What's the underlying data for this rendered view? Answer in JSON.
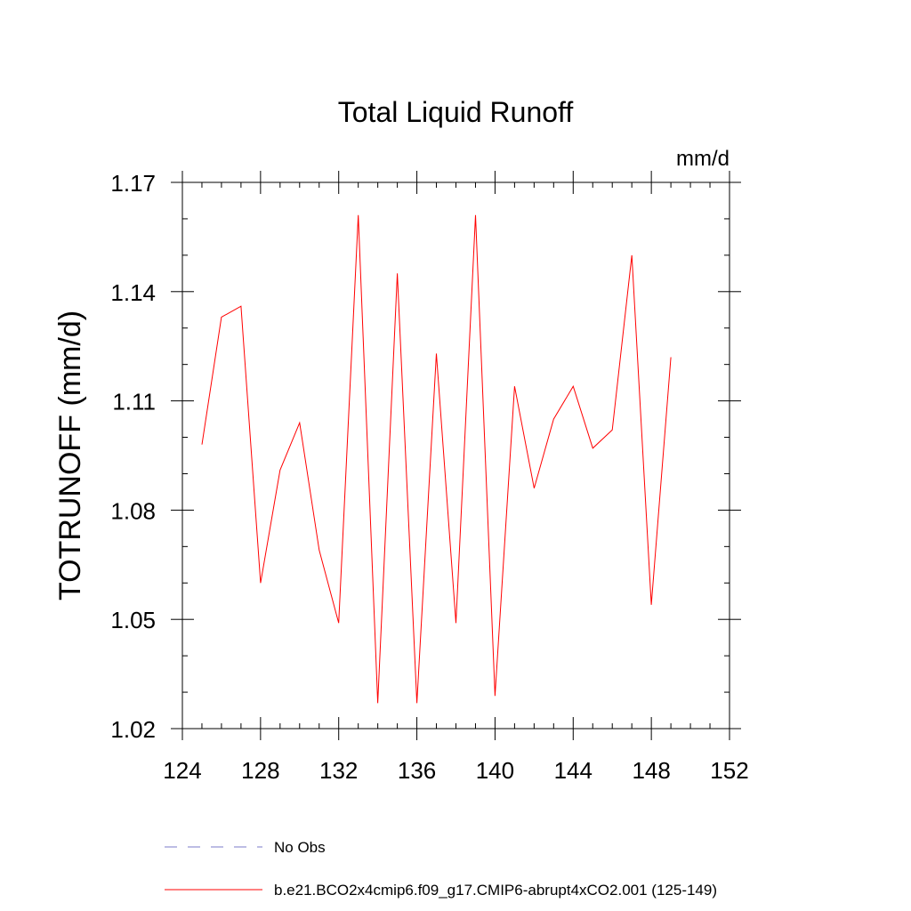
{
  "chart_data": {
    "type": "line",
    "title": "Total Liquid Runoff",
    "units": "mm/d",
    "ylabel": "TOTRUNOFF  (mm/d)",
    "xlabel": "",
    "xlim": [
      124,
      152
    ],
    "ylim": [
      1.02,
      1.17
    ],
    "x_ticks": [
      "124",
      "128",
      "132",
      "136",
      "140",
      "144",
      "148",
      "152"
    ],
    "y_ticks": [
      "1.02",
      "1.05",
      "1.08",
      "1.11",
      "1.14",
      "1.17"
    ],
    "x_tick_values": [
      124,
      128,
      132,
      136,
      140,
      144,
      148,
      152
    ],
    "y_tick_values": [
      1.02,
      1.05,
      1.08,
      1.11,
      1.14,
      1.17
    ],
    "grid": false,
    "legend_position": "bottom",
    "series": [
      {
        "name": "b.e21.BCO2x4cmip6.f09_g17.CMIP6-abrupt4xCO2.001 (125-149)",
        "color": "#ff0000",
        "x": [
          125,
          126,
          127,
          128,
          129,
          130,
          131,
          132,
          133,
          134,
          135,
          136,
          137,
          138,
          139,
          140,
          141,
          142,
          143,
          144,
          145,
          146,
          147,
          148,
          149
        ],
        "values": [
          1.098,
          1.133,
          1.136,
          1.06,
          1.091,
          1.104,
          1.069,
          1.049,
          1.161,
          1.027,
          1.145,
          1.027,
          1.123,
          1.049,
          1.161,
          1.029,
          1.114,
          1.086,
          1.105,
          1.114,
          1.097,
          1.102,
          1.15,
          1.054,
          1.122
        ]
      }
    ],
    "legend": [
      {
        "name": "No Obs",
        "color": "#7b7bc9",
        "style": "dashed"
      },
      {
        "name": "b.e21.BCO2x4cmip6.f09_g17.CMIP6-abrupt4xCO2.001 (125-149)",
        "color": "#ff0000",
        "style": "solid"
      }
    ]
  }
}
